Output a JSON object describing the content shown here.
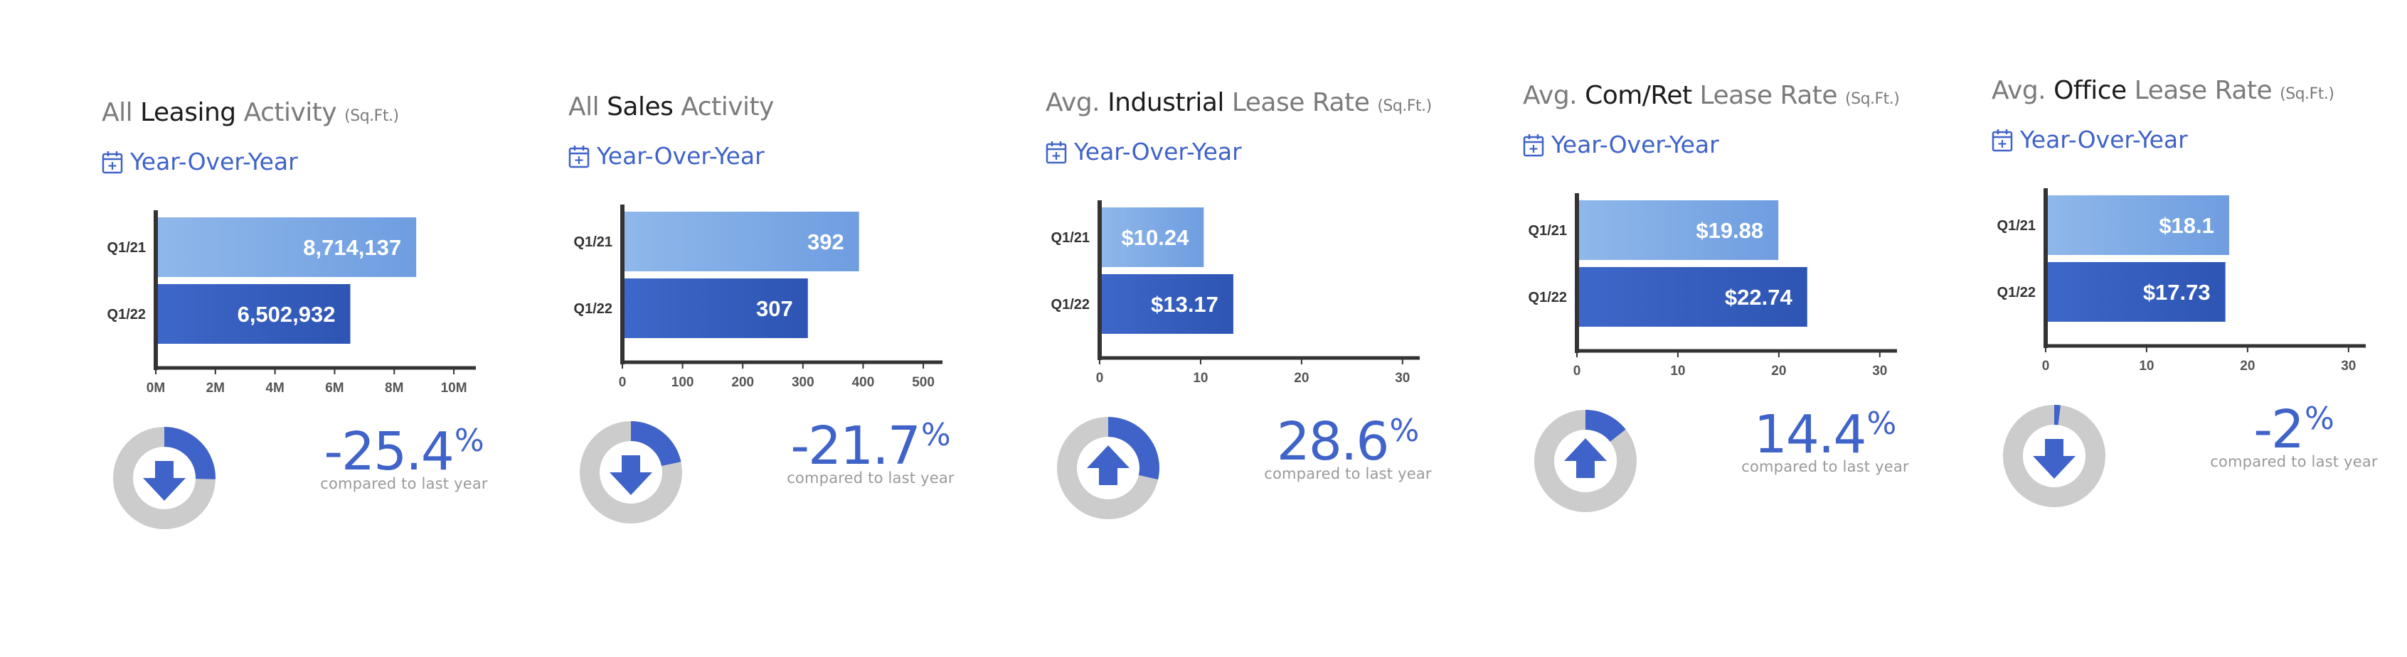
{
  "panels": [
    {
      "title_pre": "All ",
      "title_hl": "Leasing",
      "title_post": " Activity ",
      "title_unit": "(Sq.Ft.)",
      "period": "Year-Over-Year",
      "change": "-25.4",
      "change_sign": "%",
      "compare_text": "compared to last year",
      "direction": "down",
      "donut_fraction": 0.254
    },
    {
      "title_pre": "All ",
      "title_hl": "Sales",
      "title_post": " Activity",
      "title_unit": "",
      "period": "Year-Over-Year",
      "change": "-21.7",
      "change_sign": "%",
      "compare_text": "compared to last year",
      "direction": "down",
      "donut_fraction": 0.217
    },
    {
      "title_pre": "Avg. ",
      "title_hl": "Industrial",
      "title_post": " Lease Rate ",
      "title_unit": "(Sq.Ft.)",
      "period": "Year-Over-Year",
      "change": "28.6",
      "change_sign": "%",
      "compare_text": "compared to last year",
      "direction": "up",
      "donut_fraction": 0.286
    },
    {
      "title_pre": "Avg. ",
      "title_hl": "Com/Ret",
      "title_post": " Lease Rate ",
      "title_unit": "(Sq.Ft.)",
      "period": "Year-Over-Year",
      "change": "14.4",
      "change_sign": "%",
      "compare_text": "compared to last year",
      "direction": "up",
      "donut_fraction": 0.144
    },
    {
      "title_pre": "Avg. ",
      "title_hl": "Office",
      "title_post": " Lease Rate ",
      "title_unit": "(Sq.Ft.)",
      "period": "Year-Over-Year",
      "change": "-2",
      "change_sign": "%",
      "compare_text": "compared to last year",
      "direction": "down",
      "donut_fraction": 0.02
    }
  ],
  "colors": {
    "bar_q121_start": "#8fb8ea",
    "bar_q121_end": "#6f9de0",
    "bar_q122_start": "#3d67c9",
    "bar_q122_end": "#2e55b3",
    "donut_track": "#cccccc",
    "donut_fill": "#3f63c8",
    "axis": "#333333",
    "accent": "#3f63c8"
  },
  "chart_data": [
    {
      "type": "bar",
      "orientation": "horizontal",
      "categories": [
        "Q1/21",
        "Q1/22"
      ],
      "values": [
        8714137,
        6502932
      ],
      "value_labels": [
        "8,714,137",
        "6,502,932"
      ],
      "xticks": [
        0,
        2000000,
        4000000,
        6000000,
        8000000,
        10000000
      ],
      "xtick_labels": [
        "0M",
        "2M",
        "4M",
        "6M",
        "8M",
        "10M"
      ],
      "xlim": [
        0,
        10500000
      ]
    },
    {
      "type": "bar",
      "orientation": "horizontal",
      "categories": [
        "Q1/21",
        "Q1/22"
      ],
      "values": [
        392,
        307
      ],
      "value_labels": [
        "392",
        "307"
      ],
      "xticks": [
        0,
        100,
        200,
        300,
        400,
        500
      ],
      "xtick_labels": [
        "0",
        "100",
        "200",
        "300",
        "400",
        "500"
      ],
      "xlim": [
        0,
        520
      ]
    },
    {
      "type": "bar",
      "orientation": "horizontal",
      "categories": [
        "Q1/21",
        "Q1/22"
      ],
      "values": [
        10.24,
        13.17
      ],
      "value_labels": [
        "$10.24",
        "$13.17"
      ],
      "xticks": [
        0,
        10,
        20,
        30
      ],
      "xtick_labels": [
        "0",
        "10",
        "20",
        "30"
      ],
      "xlim": [
        0,
        31
      ]
    },
    {
      "type": "bar",
      "orientation": "horizontal",
      "categories": [
        "Q1/21",
        "Q1/22"
      ],
      "values": [
        19.88,
        22.74
      ],
      "value_labels": [
        "$19.88",
        "$22.74"
      ],
      "xticks": [
        0,
        10,
        20,
        30
      ],
      "xtick_labels": [
        "0",
        "10",
        "20",
        "30"
      ],
      "xlim": [
        0,
        31
      ]
    },
    {
      "type": "bar",
      "orientation": "horizontal",
      "categories": [
        "Q1/21",
        "Q1/22"
      ],
      "values": [
        18.1,
        17.73
      ],
      "value_labels": [
        "$18.1",
        "$17.73"
      ],
      "xticks": [
        0,
        10,
        20,
        30
      ],
      "xtick_labels": [
        "0",
        "10",
        "20",
        "30"
      ],
      "xlim": [
        0,
        31
      ]
    }
  ]
}
